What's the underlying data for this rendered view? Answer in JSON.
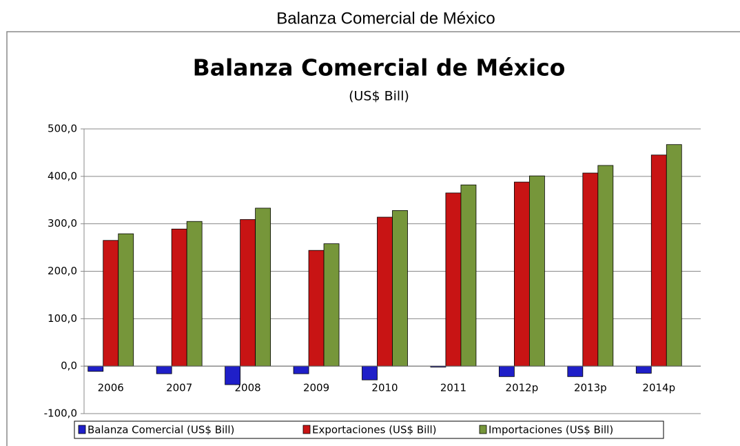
{
  "page_title": "Balanza Comercial de México",
  "chart_data": {
    "type": "bar",
    "title": "Balanza Comercial de México",
    "subtitle": "(US$ Bill)",
    "categories": [
      "2006",
      "2007",
      "2008",
      "2009",
      "2010",
      "2011",
      "2012p",
      "2013p",
      "2014p"
    ],
    "series": [
      {
        "name": "Balanza Comercial (US$ Bill)",
        "color": "#1f1fc8",
        "values": [
          -11,
          -16,
          -39,
          -16,
          -29,
          -2,
          -22,
          -22,
          -15
        ]
      },
      {
        "name": "Exportaciones (US$ Bill)",
        "color": "#c81414",
        "values": [
          265,
          289,
          309,
          244,
          314,
          365,
          388,
          407,
          445
        ]
      },
      {
        "name": "Importaciones (US$ Bill)",
        "color": "#76963a",
        "values": [
          279,
          305,
          333,
          258,
          328,
          382,
          401,
          423,
          467
        ]
      }
    ],
    "ylim": [
      -100,
      500
    ],
    "yticks": [
      {
        "value": -100,
        "label": "-100,0"
      },
      {
        "value": 0,
        "label": "0,0"
      },
      {
        "value": 100,
        "label": "100,0"
      },
      {
        "value": 200,
        "label": "200,0"
      },
      {
        "value": 300,
        "label": "300,0"
      },
      {
        "value": 400,
        "label": "400,0"
      },
      {
        "value": 500,
        "label": "500,0"
      }
    ],
    "grid": true,
    "legend": "bottom"
  }
}
